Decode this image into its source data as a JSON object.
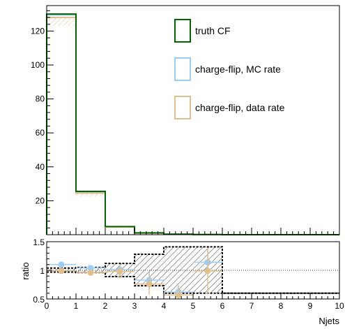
{
  "chart_data": [
    {
      "type": "histogram",
      "panel": "main",
      "xlim": [
        0,
        10
      ],
      "ylim": [
        0,
        135
      ],
      "y_ticks": [
        20,
        40,
        60,
        80,
        100,
        120
      ],
      "y_tick_labels": [
        "20",
        "40",
        "60",
        "80",
        "100",
        "120"
      ],
      "bin_edges": [
        0,
        1,
        2,
        3,
        4,
        5,
        6,
        7,
        8,
        9,
        10
      ],
      "series": [
        {
          "name": "truth CF",
          "color": "#006400",
          "values": [
            130,
            25.5,
            4.8,
            1.1,
            0.3,
            0.1,
            0,
            0,
            0,
            0
          ]
        },
        {
          "name": "charge-flip, MC rate",
          "color": "#9ccdf5",
          "values": [
            129.5,
            25.2,
            4.7,
            1.0,
            0.3,
            0.1,
            0,
            0,
            0,
            0
          ]
        },
        {
          "name": "charge-flip, data rate",
          "color": "#e0bf8c",
          "values": [
            128,
            24.5,
            4.5,
            0.9,
            0.25,
            0.08,
            0,
            0,
            0,
            0
          ],
          "band_low": [
            123,
            22.5,
            4.1,
            0.8,
            0.2,
            0.05,
            0,
            0,
            0,
            0
          ]
        }
      ],
      "legend_placement": "top-right",
      "grid": false
    },
    {
      "type": "scatter",
      "panel": "ratio",
      "xlabel": "Njets",
      "ylabel": "ratio",
      "xlim": [
        0,
        10
      ],
      "ylim": [
        0.5,
        1.5
      ],
      "x_ticks": [
        0,
        1,
        2,
        3,
        4,
        5,
        6,
        7,
        8,
        9,
        10
      ],
      "x_tick_labels": [
        "0",
        "1",
        "2",
        "3",
        "4",
        "5",
        "6",
        "7",
        "8",
        "9",
        "10"
      ],
      "y_ticks": [
        0.5,
        1,
        1.5
      ],
      "y_tick_labels": [
        "0.5",
        "1",
        "1.5"
      ],
      "reference_line": 1,
      "uncertainty_band": {
        "bin_edges": [
          0,
          1,
          2,
          3,
          4,
          6,
          10
        ],
        "low": [
          0.97,
          0.96,
          0.89,
          0.73,
          0.6,
          0.6
        ],
        "high": [
          1.04,
          1.05,
          1.12,
          1.28,
          1.41,
          0.6
        ]
      },
      "series": [
        {
          "name": "charge-flip, MC rate",
          "color": "#9ccdf5",
          "x": [
            0.5,
            1.5,
            2.5,
            3.5,
            4.5,
            5.5
          ],
          "y": [
            1.1,
            1.04,
            1.01,
            0.83,
            0.62,
            1.14
          ],
          "yerr": [
            0.03,
            0.05,
            0.1,
            0.15,
            0.12,
            0.2
          ]
        },
        {
          "name": "charge-flip, data rate",
          "color": "#e0bf8c",
          "x": [
            0.5,
            1.5,
            2.5,
            3.5,
            4.5,
            5.5
          ],
          "y": [
            0.99,
            0.96,
            0.98,
            0.76,
            0.57,
            0.99
          ],
          "yerr": [
            0.03,
            0.05,
            0.12,
            0.18,
            0.15,
            0.4
          ]
        }
      ],
      "grid": false
    }
  ]
}
